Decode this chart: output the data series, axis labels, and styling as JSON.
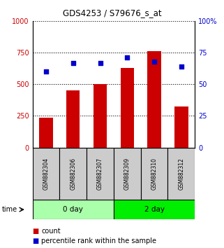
{
  "title": "GDS4253 / S79676_s_at",
  "samples": [
    "GSM882304",
    "GSM882306",
    "GSM882307",
    "GSM882309",
    "GSM882310",
    "GSM882312"
  ],
  "bar_values": [
    237,
    452,
    503,
    628,
    762,
    325
  ],
  "scatter_values": [
    60,
    67,
    67,
    71,
    68,
    64
  ],
  "bar_color": "#cc0000",
  "scatter_color": "#0000cc",
  "ylim_left": [
    0,
    1000
  ],
  "ylim_right": [
    0,
    100
  ],
  "yticks_left": [
    0,
    250,
    500,
    750,
    1000
  ],
  "yticks_right": [
    0,
    25,
    50,
    75,
    100
  ],
  "ytick_labels_left": [
    "0",
    "250",
    "500",
    "750",
    "1000"
  ],
  "ytick_labels_right": [
    "0",
    "25",
    "50",
    "75",
    "100%"
  ],
  "groups": [
    {
      "label": "0 day",
      "indices": [
        0,
        1,
        2
      ],
      "color": "#aaffaa",
      "edge_color": "#33cc33"
    },
    {
      "label": "2 day",
      "indices": [
        3,
        4,
        5
      ],
      "color": "#00ee00",
      "edge_color": "#00aa00"
    }
  ],
  "time_label": "time",
  "legend_bar_label": "count",
  "legend_scatter_label": "percentile rank within the sample",
  "bg_color": "#ffffff",
  "sample_area_color": "#cccccc",
  "bar_width": 0.5,
  "figsize": [
    3.21,
    3.54
  ],
  "dpi": 100
}
